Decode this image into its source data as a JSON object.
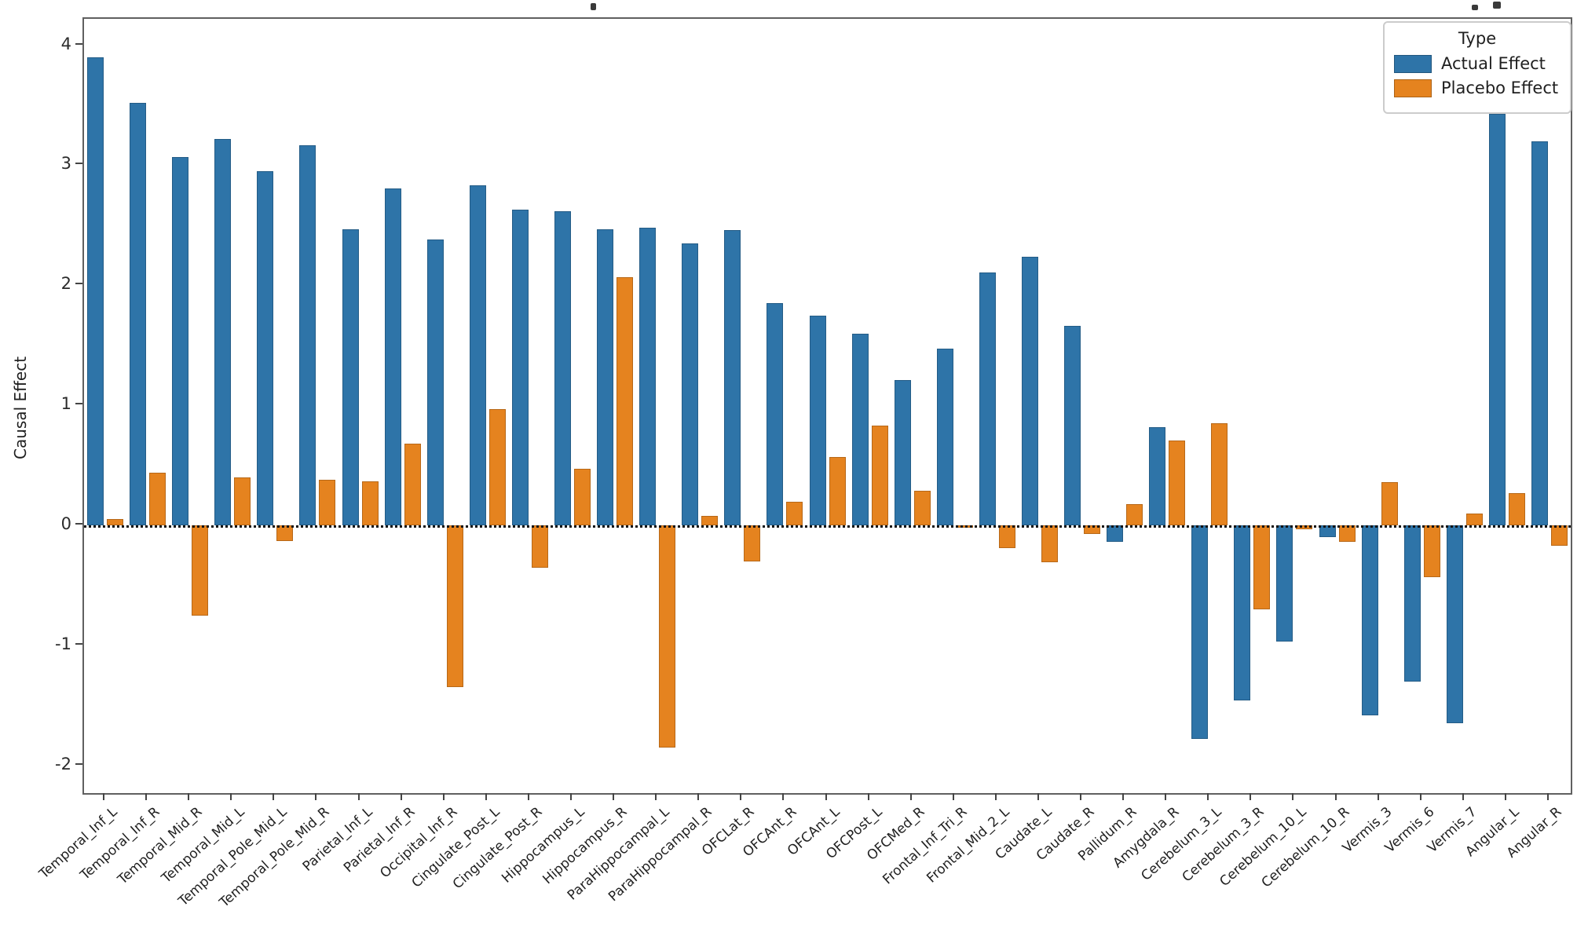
{
  "figure": {
    "background": "#ffffff"
  },
  "legend": {
    "title": "Type",
    "entries": [
      {
        "label": "Actual Effect",
        "color": "#2e74a8"
      },
      {
        "label": "Placebo Effect",
        "color": "#e5831f"
      }
    ]
  },
  "axes": {
    "ylabel": "Causal Effect",
    "yticks": [
      "-2",
      "-1",
      "0",
      "1",
      "2",
      "3",
      "4"
    ]
  },
  "chart_data": {
    "type": "bar",
    "title": "",
    "xlabel": "",
    "ylabel": "Causal Effect",
    "legend_title": "Type",
    "legend_position": "upper right",
    "grid": false,
    "zero_line": "black dotted",
    "ylim": [
      -2.23,
      4.22
    ],
    "yticks": [
      -2,
      -1,
      0,
      1,
      2,
      3,
      4
    ],
    "categories": [
      "Temporal_Inf_L",
      "Temporal_Inf_R",
      "Temporal_Mid_R",
      "Temporal_Mid_L",
      "Temporal_Pole_Mid_L",
      "Temporal_Pole_Mid_R",
      "Parietal_Inf_L",
      "Parietal_Inf_R",
      "Occipital_Inf_R",
      "Cingulate_Post_L",
      "Cingulate_Post_R",
      "Hippocampus_L",
      "Hippocampus_R",
      "ParaHippocampal_L",
      "ParaHippocampal_R",
      "OFCLat_R",
      "OFCAnt_R",
      "OFCAnt_L",
      "OFCPost_L",
      "OFCMed_R",
      "Frontal_Inf_Tri_R",
      "Frontal_Mid_2_L",
      "Caudate_L",
      "Caudate_R",
      "Pallidum_R",
      "Amygdala_R",
      "Cerebelum_3_L",
      "Cerebelum_3_R",
      "Cerebelum_10_L",
      "Cerebelum_10_R",
      "Vermis_3",
      "Vermis_6",
      "Vermis_7",
      "Angular_L",
      "Angular_R"
    ],
    "series": [
      {
        "name": "Actual Effect",
        "color": "#2e74a8",
        "values": [
          3.9,
          3.52,
          3.07,
          3.22,
          2.95,
          3.17,
          2.47,
          2.81,
          2.38,
          2.83,
          2.63,
          2.62,
          2.47,
          2.48,
          2.35,
          2.46,
          1.85,
          1.75,
          1.6,
          1.21,
          1.47,
          2.11,
          2.24,
          1.66,
          -0.14,
          0.82,
          -1.78,
          -1.46,
          -0.97,
          -0.1,
          -1.58,
          -1.3,
          -1.65,
          3.43,
          3.2
        ]
      },
      {
        "name": "Placebo Effect",
        "color": "#e5831f",
        "values": [
          0.05,
          0.44,
          -0.75,
          0.4,
          -0.13,
          0.38,
          0.37,
          0.68,
          -1.35,
          0.97,
          -0.35,
          0.47,
          2.07,
          -1.85,
          0.08,
          -0.3,
          0.2,
          0.57,
          0.83,
          0.29,
          -0.02,
          -0.19,
          -0.31,
          -0.07,
          0.18,
          0.71,
          0.85,
          -0.7,
          -0.03,
          -0.14,
          0.36,
          -0.43,
          0.1,
          0.27,
          -0.17
        ]
      }
    ]
  }
}
